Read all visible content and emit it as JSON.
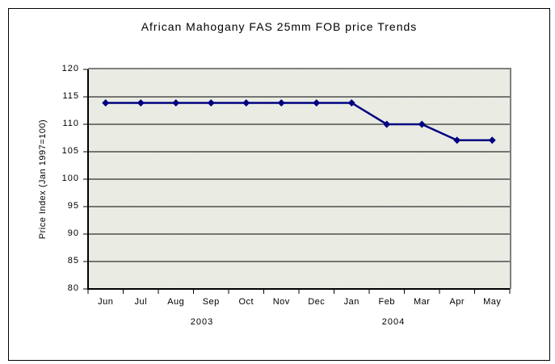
{
  "chart_data": {
    "type": "line",
    "title": "African Mahogany FAS 25mm FOB price Trends",
    "ylabel": "Price Index (Jan 1997=100)",
    "xlabel": "",
    "categories": [
      "Jun",
      "Jul",
      "Aug",
      "Sep",
      "Oct",
      "Nov",
      "Dec",
      "Jan",
      "Feb",
      "Mar",
      "Apr",
      "May"
    ],
    "year_labels": [
      "2003",
      "2004"
    ],
    "series": [
      {
        "name": "African Mahogany FAS 25mm FOB price index",
        "values": [
          113.9,
          113.9,
          113.9,
          113.9,
          113.9,
          113.9,
          113.9,
          113.9,
          110.0,
          110.0,
          107.1,
          107.1
        ],
        "color": "#000080",
        "marker": "diamond"
      }
    ],
    "ylim": [
      80,
      120
    ],
    "ytick_step": 5,
    "grid": true,
    "legend": "none"
  },
  "colors": {
    "line": "#000080",
    "gridline": "#000000",
    "axis": "#000000",
    "plot_border_shadow": "#7f7f7f",
    "plot_bg_light": "#f1f2ed",
    "plot_bg_dark": "#e2e5da",
    "frame_border": "#000000",
    "background": "#ffffff",
    "text": "#000000"
  }
}
